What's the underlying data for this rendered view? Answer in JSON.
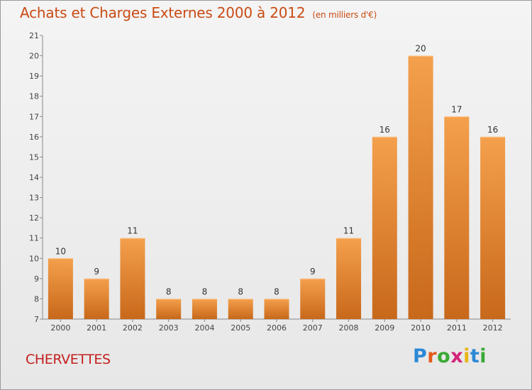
{
  "header": {
    "title": "Achats et Charges Externes 2000 à 2012",
    "subtitle": "(en milliers d'€)"
  },
  "footer": {
    "place": "CHERVETTES",
    "logo_letters": [
      "P",
      "r",
      "o",
      "x",
      "i",
      "t",
      "i"
    ],
    "logo_colors": [
      "#2b89d6",
      "#e45a1c",
      "#3aa935",
      "#d4247a",
      "#e8b514",
      "#2b89d6",
      "#3aa935"
    ]
  },
  "chart_data": {
    "type": "bar",
    "title": "Achats et Charges Externes 2000 à 2012",
    "subtitle": "(en milliers d'€)",
    "categories": [
      "2000",
      "2001",
      "2002",
      "2003",
      "2004",
      "2005",
      "2006",
      "2007",
      "2008",
      "2009",
      "2010",
      "2011",
      "2012"
    ],
    "values": [
      10,
      9,
      11,
      8,
      8,
      8,
      8,
      9,
      11,
      16,
      20,
      17,
      16
    ],
    "yticks": [
      7,
      8,
      9,
      10,
      11,
      12,
      13,
      14,
      15,
      16,
      17,
      18,
      19,
      20,
      21
    ],
    "ylim": [
      7,
      21
    ],
    "xlabel": "",
    "ylabel": "",
    "grid": false,
    "bar_color": "#f4a04c",
    "bar_color_dark": "#c8681a"
  }
}
